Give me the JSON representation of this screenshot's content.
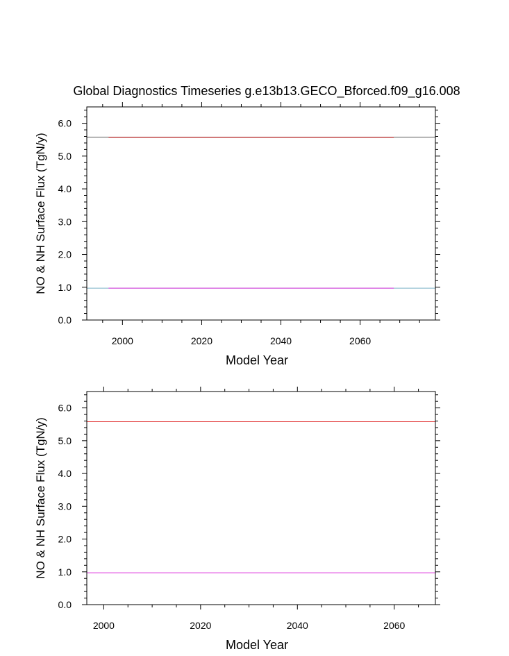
{
  "chart_data": [
    {
      "type": "line",
      "title": "Global Diagnostics Timeseries g.e13b13.GECO_Bforced.f09_g16.008",
      "xlabel": "Model Year",
      "ylabel": "NO & NH Surface Flux (TgN/y)",
      "xlim": [
        1991,
        2079
      ],
      "ylim": [
        0,
        6.5
      ],
      "xticks": [
        2000,
        2020,
        2040,
        2060
      ],
      "xtick_labels": [
        "2000",
        "2020",
        "2040",
        "2060"
      ],
      "yticks": [
        0,
        1,
        2,
        3,
        4,
        5,
        6
      ],
      "ytick_labels": [
        "0.0",
        "1.0",
        "2.0",
        "3.0",
        "4.0",
        "5.0",
        "6.0"
      ],
      "series": [
        {
          "values_x": [
            1991,
            2079
          ],
          "values_y": [
            5.58,
            5.58
          ],
          "color": "#555555"
        },
        {
          "values_x": [
            1996.5,
            2068.5
          ],
          "values_y": [
            5.57,
            5.57
          ],
          "color": "#d92020"
        },
        {
          "values_x": [
            1991,
            2079
          ],
          "values_y": [
            0.97,
            0.97
          ],
          "color": "#7ab0c8"
        },
        {
          "values_x": [
            1996.5,
            2068.5
          ],
          "values_y": [
            0.97,
            0.97
          ],
          "color": "#dd33dd"
        }
      ]
    },
    {
      "type": "line",
      "title": "",
      "xlabel": "Model Year",
      "ylabel": "NO & NH Surface Flux (TgN/y)",
      "xlim": [
        1996.5,
        2068.5
      ],
      "ylim": [
        0,
        6.5
      ],
      "xticks": [
        2000,
        2020,
        2040,
        2060
      ],
      "xtick_labels": [
        "2000",
        "2020",
        "2040",
        "2060"
      ],
      "yticks": [
        0,
        1,
        2,
        3,
        4,
        5,
        6
      ],
      "ytick_labels": [
        "0.0",
        "1.0",
        "2.0",
        "3.0",
        "4.0",
        "5.0",
        "6.0"
      ],
      "series": [
        {
          "values_x": [
            1996.5,
            2068.5
          ],
          "values_y": [
            5.58,
            5.58
          ],
          "color": "#e03030"
        },
        {
          "values_x": [
            1996.5,
            2068.5
          ],
          "values_y": [
            0.97,
            0.97
          ],
          "color": "#dd33dd"
        }
      ]
    }
  ]
}
